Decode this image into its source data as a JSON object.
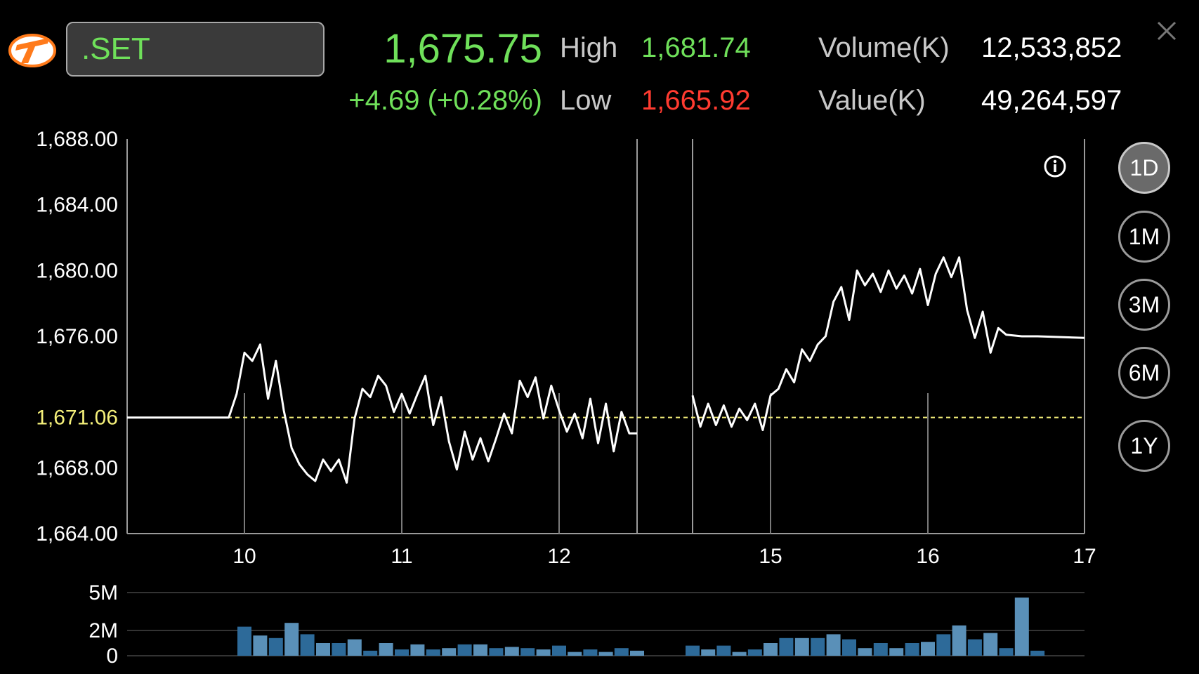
{
  "symbol": ".SET",
  "quote": {
    "last": "1,675.75",
    "change": "+4.69 (+0.28%)",
    "high_label": "High",
    "high": "1,681.74",
    "low_label": "Low",
    "low": "1,665.92",
    "volume_label": "Volume(K)",
    "volume": "12,533,852",
    "value_label": "Value(K)",
    "value": "49,264,597"
  },
  "colors": {
    "up": "#6fe05a",
    "down": "#ff3b30",
    "reference": "#f5f07a",
    "volume_bar": "#3a7fb0"
  },
  "icons": {
    "logo": "brand-logo",
    "close": "close-icon",
    "info": "info-icon"
  },
  "periods": [
    {
      "label": "1D",
      "active": true
    },
    {
      "label": "1M",
      "active": false
    },
    {
      "label": "3M",
      "active": false
    },
    {
      "label": "6M",
      "active": false
    },
    {
      "label": "1Y",
      "active": false
    }
  ],
  "chart_data": {
    "type": "line",
    "y_ticks": [
      "1,688.00",
      "1,684.00",
      "1,680.00",
      "1,676.00",
      "1,668.00",
      "1,664.00"
    ],
    "y_tick_values": [
      1688,
      1684,
      1680,
      1676,
      1668,
      1664
    ],
    "ylim": [
      1664,
      1688
    ],
    "reference_label": "1,671.06",
    "reference_value": 1671.06,
    "x_ticks": [
      "10",
      "11",
      "12",
      "15",
      "16",
      "17"
    ],
    "session1_x": [
      9.25,
      9.9,
      10.2,
      10.75,
      11.25,
      11.75,
      12.5
    ],
    "session2_x": [
      14.5,
      15.0,
      16.0,
      17.0
    ],
    "series": [
      {
        "segment": "morning",
        "x": [
          9.25,
          9.5,
          9.75,
          9.9,
          9.95,
          10.0,
          10.05,
          10.1,
          10.15,
          10.2,
          10.25,
          10.3,
          10.35,
          10.4,
          10.45,
          10.5,
          10.55,
          10.6,
          10.65,
          10.7,
          10.75,
          10.8,
          10.85,
          10.9,
          10.95,
          11.0,
          11.05,
          11.1,
          11.15,
          11.2,
          11.25,
          11.3,
          11.35,
          11.4,
          11.45,
          11.5,
          11.55,
          11.6,
          11.65,
          11.7,
          11.75,
          11.8,
          11.85,
          11.9,
          11.95,
          12.0,
          12.05,
          12.1,
          12.15,
          12.2,
          12.25,
          12.3,
          12.35,
          12.4,
          12.45,
          12.5
        ],
        "values": [
          1671.06,
          1671.06,
          1671.06,
          1671.06,
          1672.5,
          1675.0,
          1674.5,
          1675.5,
          1672.2,
          1674.5,
          1671.5,
          1669.2,
          1668.2,
          1667.6,
          1667.2,
          1668.5,
          1667.8,
          1668.5,
          1667.1,
          1671.0,
          1672.8,
          1672.3,
          1673.6,
          1673.0,
          1671.4,
          1672.5,
          1671.3,
          1672.5,
          1673.6,
          1670.6,
          1672.3,
          1669.6,
          1667.9,
          1670.2,
          1668.5,
          1669.8,
          1668.4,
          1669.8,
          1671.3,
          1670.1,
          1673.3,
          1672.3,
          1673.5,
          1671.0,
          1673.0,
          1671.5,
          1670.2,
          1671.3,
          1669.8,
          1672.2,
          1669.5,
          1671.9,
          1669.0,
          1671.4,
          1670.1,
          1670.1
        ]
      },
      {
        "segment": "afternoon",
        "x": [
          14.5,
          14.55,
          14.6,
          14.65,
          14.7,
          14.75,
          14.8,
          14.85,
          14.9,
          14.95,
          15.0,
          15.05,
          15.1,
          15.15,
          15.2,
          15.25,
          15.3,
          15.35,
          15.4,
          15.45,
          15.5,
          15.55,
          15.6,
          15.65,
          15.7,
          15.75,
          15.8,
          15.85,
          15.9,
          15.95,
          16.0,
          16.05,
          16.1,
          16.15,
          16.2,
          16.25,
          16.3,
          16.35,
          16.4,
          16.45,
          16.5,
          16.6,
          16.7,
          17.0
        ],
        "values": [
          1672.4,
          1670.5,
          1671.9,
          1670.6,
          1671.8,
          1670.5,
          1671.6,
          1670.9,
          1671.9,
          1670.3,
          1672.4,
          1672.8,
          1674.0,
          1673.2,
          1675.2,
          1674.5,
          1675.5,
          1676.0,
          1678.1,
          1679.0,
          1677.0,
          1680.0,
          1679.1,
          1679.8,
          1678.7,
          1680.0,
          1678.9,
          1679.7,
          1678.6,
          1680.1,
          1677.9,
          1679.8,
          1680.8,
          1679.6,
          1680.8,
          1677.6,
          1675.9,
          1677.5,
          1675.0,
          1676.5,
          1676.1,
          1676.0,
          1676.0,
          1675.9
        ]
      }
    ],
    "volume": {
      "y_ticks": [
        "5M",
        "2M",
        "0"
      ],
      "y_tick_values": [
        5,
        2,
        0
      ],
      "ylim": [
        0,
        5
      ],
      "x": [
        10.0,
        10.1,
        10.2,
        10.3,
        10.4,
        10.5,
        10.6,
        10.7,
        10.8,
        10.9,
        11.0,
        11.1,
        11.2,
        11.3,
        11.4,
        11.5,
        11.6,
        11.7,
        11.8,
        11.9,
        12.0,
        12.1,
        12.2,
        12.3,
        12.4,
        12.5,
        14.5,
        14.6,
        14.7,
        14.8,
        14.9,
        15.0,
        15.1,
        15.2,
        15.3,
        15.4,
        15.5,
        15.6,
        15.7,
        15.8,
        15.9,
        16.0,
        16.1,
        16.2,
        16.3,
        16.4,
        16.5,
        16.6,
        16.7
      ],
      "values": [
        2.3,
        1.6,
        1.4,
        2.6,
        1.7,
        1.0,
        1.0,
        1.3,
        0.4,
        1.0,
        0.5,
        0.9,
        0.5,
        0.6,
        0.9,
        0.9,
        0.6,
        0.7,
        0.6,
        0.5,
        0.8,
        0.3,
        0.5,
        0.3,
        0.6,
        0.4,
        0.8,
        0.5,
        0.8,
        0.3,
        0.5,
        1.0,
        1.4,
        1.4,
        1.4,
        1.7,
        1.3,
        0.6,
        1.0,
        0.6,
        1.0,
        1.1,
        1.7,
        2.4,
        1.3,
        1.8,
        0.6,
        4.6,
        0.4
      ]
    }
  }
}
